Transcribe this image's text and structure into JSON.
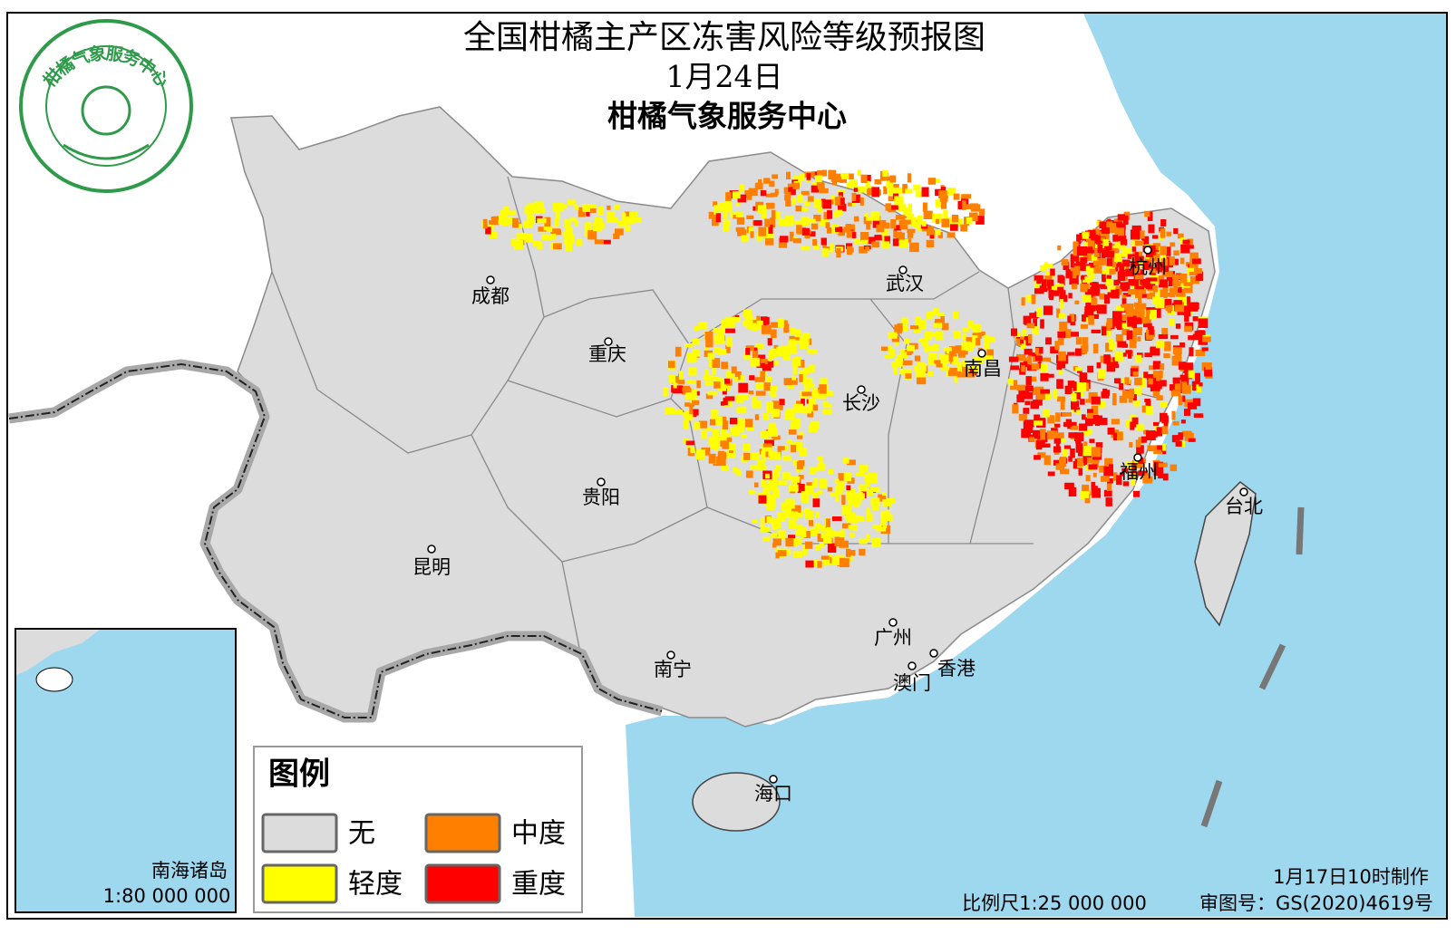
{
  "header": {
    "title": "全国柑橘主产区冻害风险等级预报图",
    "date": "1月24日",
    "issuer": "柑橘气象服务中心"
  },
  "logo": {
    "text": "柑橘气象服务中心"
  },
  "cities": [
    "成都",
    "重庆",
    "贵阳",
    "昆明",
    "南宁",
    "长沙",
    "武汉",
    "南昌",
    "杭州",
    "福州",
    "台北",
    "广州",
    "香港",
    "澳门",
    "海口"
  ],
  "legend": {
    "title": "图例",
    "items": [
      {
        "label": "无",
        "color": "#dcdcdc"
      },
      {
        "label": "中度",
        "color": "#ff8000"
      },
      {
        "label": "轻度",
        "color": "#ffff00"
      },
      {
        "label": "重度",
        "color": "#ff0000"
      }
    ]
  },
  "inset": {
    "label": "南海诸岛",
    "scale": "1:80 000 000"
  },
  "footer": {
    "made": "1月17日10时制作",
    "scale": "比例尺1:25 000 000",
    "review": "审图号：GS(2020)4619号"
  }
}
